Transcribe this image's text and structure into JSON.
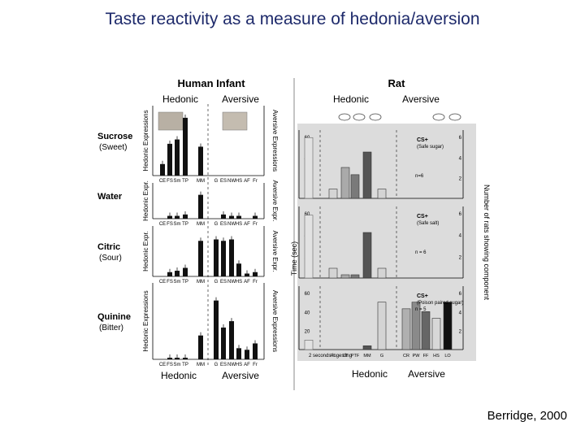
{
  "slide": {
    "title": "Taste reactivity as a measure of hedonia/aversion",
    "credit": "Berridge, 2000"
  },
  "colors": {
    "title": "#1e2a6b",
    "bar": "#111111",
    "rat_panel_bg": "#dcdcdc"
  },
  "chart_data": [
    {
      "type": "bar",
      "title": "Human Infant",
      "group_labels": [
        "Hedonic",
        "Aversive"
      ],
      "y_axis_left": "Hedonic Expressions",
      "y_axis_right": "Aversive Expressions",
      "categories": [
        "CE",
        "FS",
        "Sm",
        "TP",
        "MM",
        "G",
        "ES",
        "NW",
        "HS",
        "AF",
        "Fr"
      ],
      "bottom_labels": [
        "Hedonic",
        "Aversive"
      ],
      "panels": [
        {
          "label": "Sucrose",
          "sublabel": "(Sweet)",
          "left_axis_label": "Hedonic Expressions",
          "right_axis_label": "Aversive Expressions",
          "values": [
            0.8,
            2.2,
            2.5,
            4.0,
            2.0,
            0,
            0,
            0,
            0,
            0,
            0
          ]
        },
        {
          "label": "Water",
          "sublabel": "",
          "left_axis_label": "Hedonic Expr.",
          "right_axis_label": "Aversive Expr.",
          "values": [
            0,
            0.2,
            0.2,
            0.3,
            1.7,
            0,
            0.3,
            0.2,
            0.2,
            0,
            0.2
          ]
        },
        {
          "label": "Citric",
          "sublabel": "(Sour)",
          "left_axis_label": "Hedonic Expr.",
          "right_axis_label": "Aversive Expr.",
          "values": [
            0,
            0.3,
            0.4,
            0.6,
            2.5,
            2.6,
            2.5,
            2.6,
            0.9,
            0.2,
            0.3
          ]
        },
        {
          "label": "Quinine",
          "sublabel": "(Bitter)",
          "left_axis_label": "Hedonic Expressions",
          "right_axis_label": "Aversive Expressions",
          "values": [
            0,
            0.1,
            0.1,
            0.1,
            1.5,
            3.7,
            2.0,
            2.4,
            0.7,
            0.6,
            1.0
          ]
        }
      ]
    },
    {
      "type": "bar",
      "title": "Rat",
      "group_labels": [
        "Hedonic",
        "Aversive"
      ],
      "y_axis_left": "Time (sec)",
      "y_axis_right": "Number of rats showing component",
      "yticks_left": [
        "20",
        "40",
        "60"
      ],
      "yticks_right": [
        "2",
        "4",
        "6"
      ],
      "categories": [
        "PL",
        "LT",
        "PTF",
        "MM",
        "G",
        "CR",
        "PW",
        "FF",
        "HS",
        "LO"
      ],
      "x_caption": "2 seconds ingesting",
      "bottom_labels": [
        "Hedonic",
        "Aversive"
      ],
      "panels": [
        {
          "legend": "CS+",
          "legend_note": "(Safe sugar)",
          "n_label": "n=6",
          "ingest_time": 59,
          "values": [
            0.9,
            3.0,
            2.3,
            4.5,
            0.9,
            0,
            0,
            0,
            0,
            0
          ]
        },
        {
          "legend": "CS+",
          "legend_note": "(Safe salt)",
          "n_label": "n = 6",
          "ingest_time": 58,
          "values": [
            0.9,
            0.3,
            0.3,
            4.2,
            0.9,
            0,
            0,
            0,
            0,
            0
          ]
        },
        {
          "legend": "CS+",
          "legend_note": "(Poison paired sugar)",
          "n_label": "n = 5",
          "ingest_time": 10,
          "values": [
            0,
            0,
            0,
            0.4,
            5.0,
            4.3,
            5.0,
            4.0,
            3.3,
            5.0
          ]
        }
      ]
    }
  ]
}
